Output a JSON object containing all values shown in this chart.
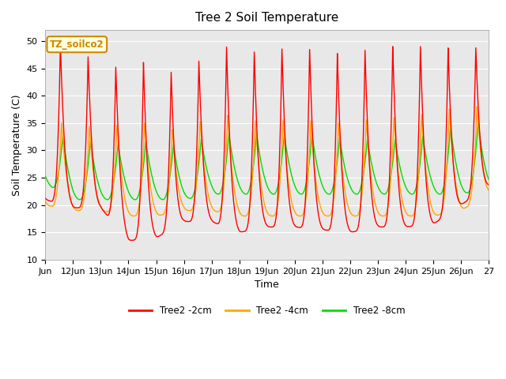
{
  "title": "Tree 2 Soil Temperature",
  "xlabel": "Time",
  "ylabel": "Soil Temperature (C)",
  "ylim": [
    10,
    52
  ],
  "xlim": [
    0,
    384
  ],
  "annotation_text": "TZ_soilco2",
  "annotation_color": "#cc8800",
  "annotation_bg": "#ffffdd",
  "bg_color": "#e8e8e8",
  "line_colors": [
    "#ff0000",
    "#ffa500",
    "#00dd00"
  ],
  "line_labels": [
    "Tree2 -2cm",
    "Tree2 -4cm",
    "Tree2 -8cm"
  ],
  "tick_labels": [
    "Jun",
    "12Jun",
    "13Jun",
    "14Jun",
    "15Jun",
    "16Jun",
    "17Jun",
    "18Jun",
    "19Jun",
    "20Jun",
    "21Jun",
    "22Jun",
    "23Jun",
    "24Jun",
    "25Jun",
    "26Jun",
    "27"
  ],
  "tick_positions": [
    0,
    24,
    48,
    72,
    96,
    120,
    144,
    168,
    192,
    216,
    240,
    264,
    288,
    312,
    336,
    360,
    384
  ],
  "hours_total": 384,
  "t2cm_peaks": [
    50,
    49,
    45.5,
    45,
    47,
    42,
    50,
    48,
    48,
    49,
    48,
    47.5,
    49,
    49,
    49,
    48.5,
    49
  ],
  "t2cm_mins": [
    21,
    19.5,
    19.5,
    13.5,
    14,
    17,
    17,
    15,
    16,
    16,
    15.5,
    15,
    16,
    16,
    16.5,
    20,
    23.5
  ],
  "t4cm_peaks": [
    35,
    35,
    34,
    35,
    35,
    33,
    37,
    36,
    35,
    36,
    35,
    35,
    36,
    36,
    37,
    38,
    38
  ],
  "t4cm_mins": [
    20,
    19,
    19,
    18,
    18,
    19,
    19,
    18,
    18,
    18,
    18,
    18,
    18,
    18,
    18,
    19,
    22
  ],
  "t8cm_peaks": [
    33,
    32,
    31.5,
    31,
    32,
    30.5,
    33,
    33,
    33,
    33,
    33,
    32,
    32,
    32,
    33,
    35,
    35
  ],
  "t8cm_mins": [
    24,
    21,
    21,
    21,
    21,
    21,
    22,
    22,
    22,
    22,
    22,
    22,
    22,
    22,
    22,
    22,
    23
  ],
  "peak_hour_2cm": 13,
  "peak_hour_4cm": 14,
  "peak_hour_8cm": 15,
  "min_hour_2cm": 4,
  "min_hour_4cm": 5,
  "min_hour_8cm": 6,
  "sharpness": 3.5
}
